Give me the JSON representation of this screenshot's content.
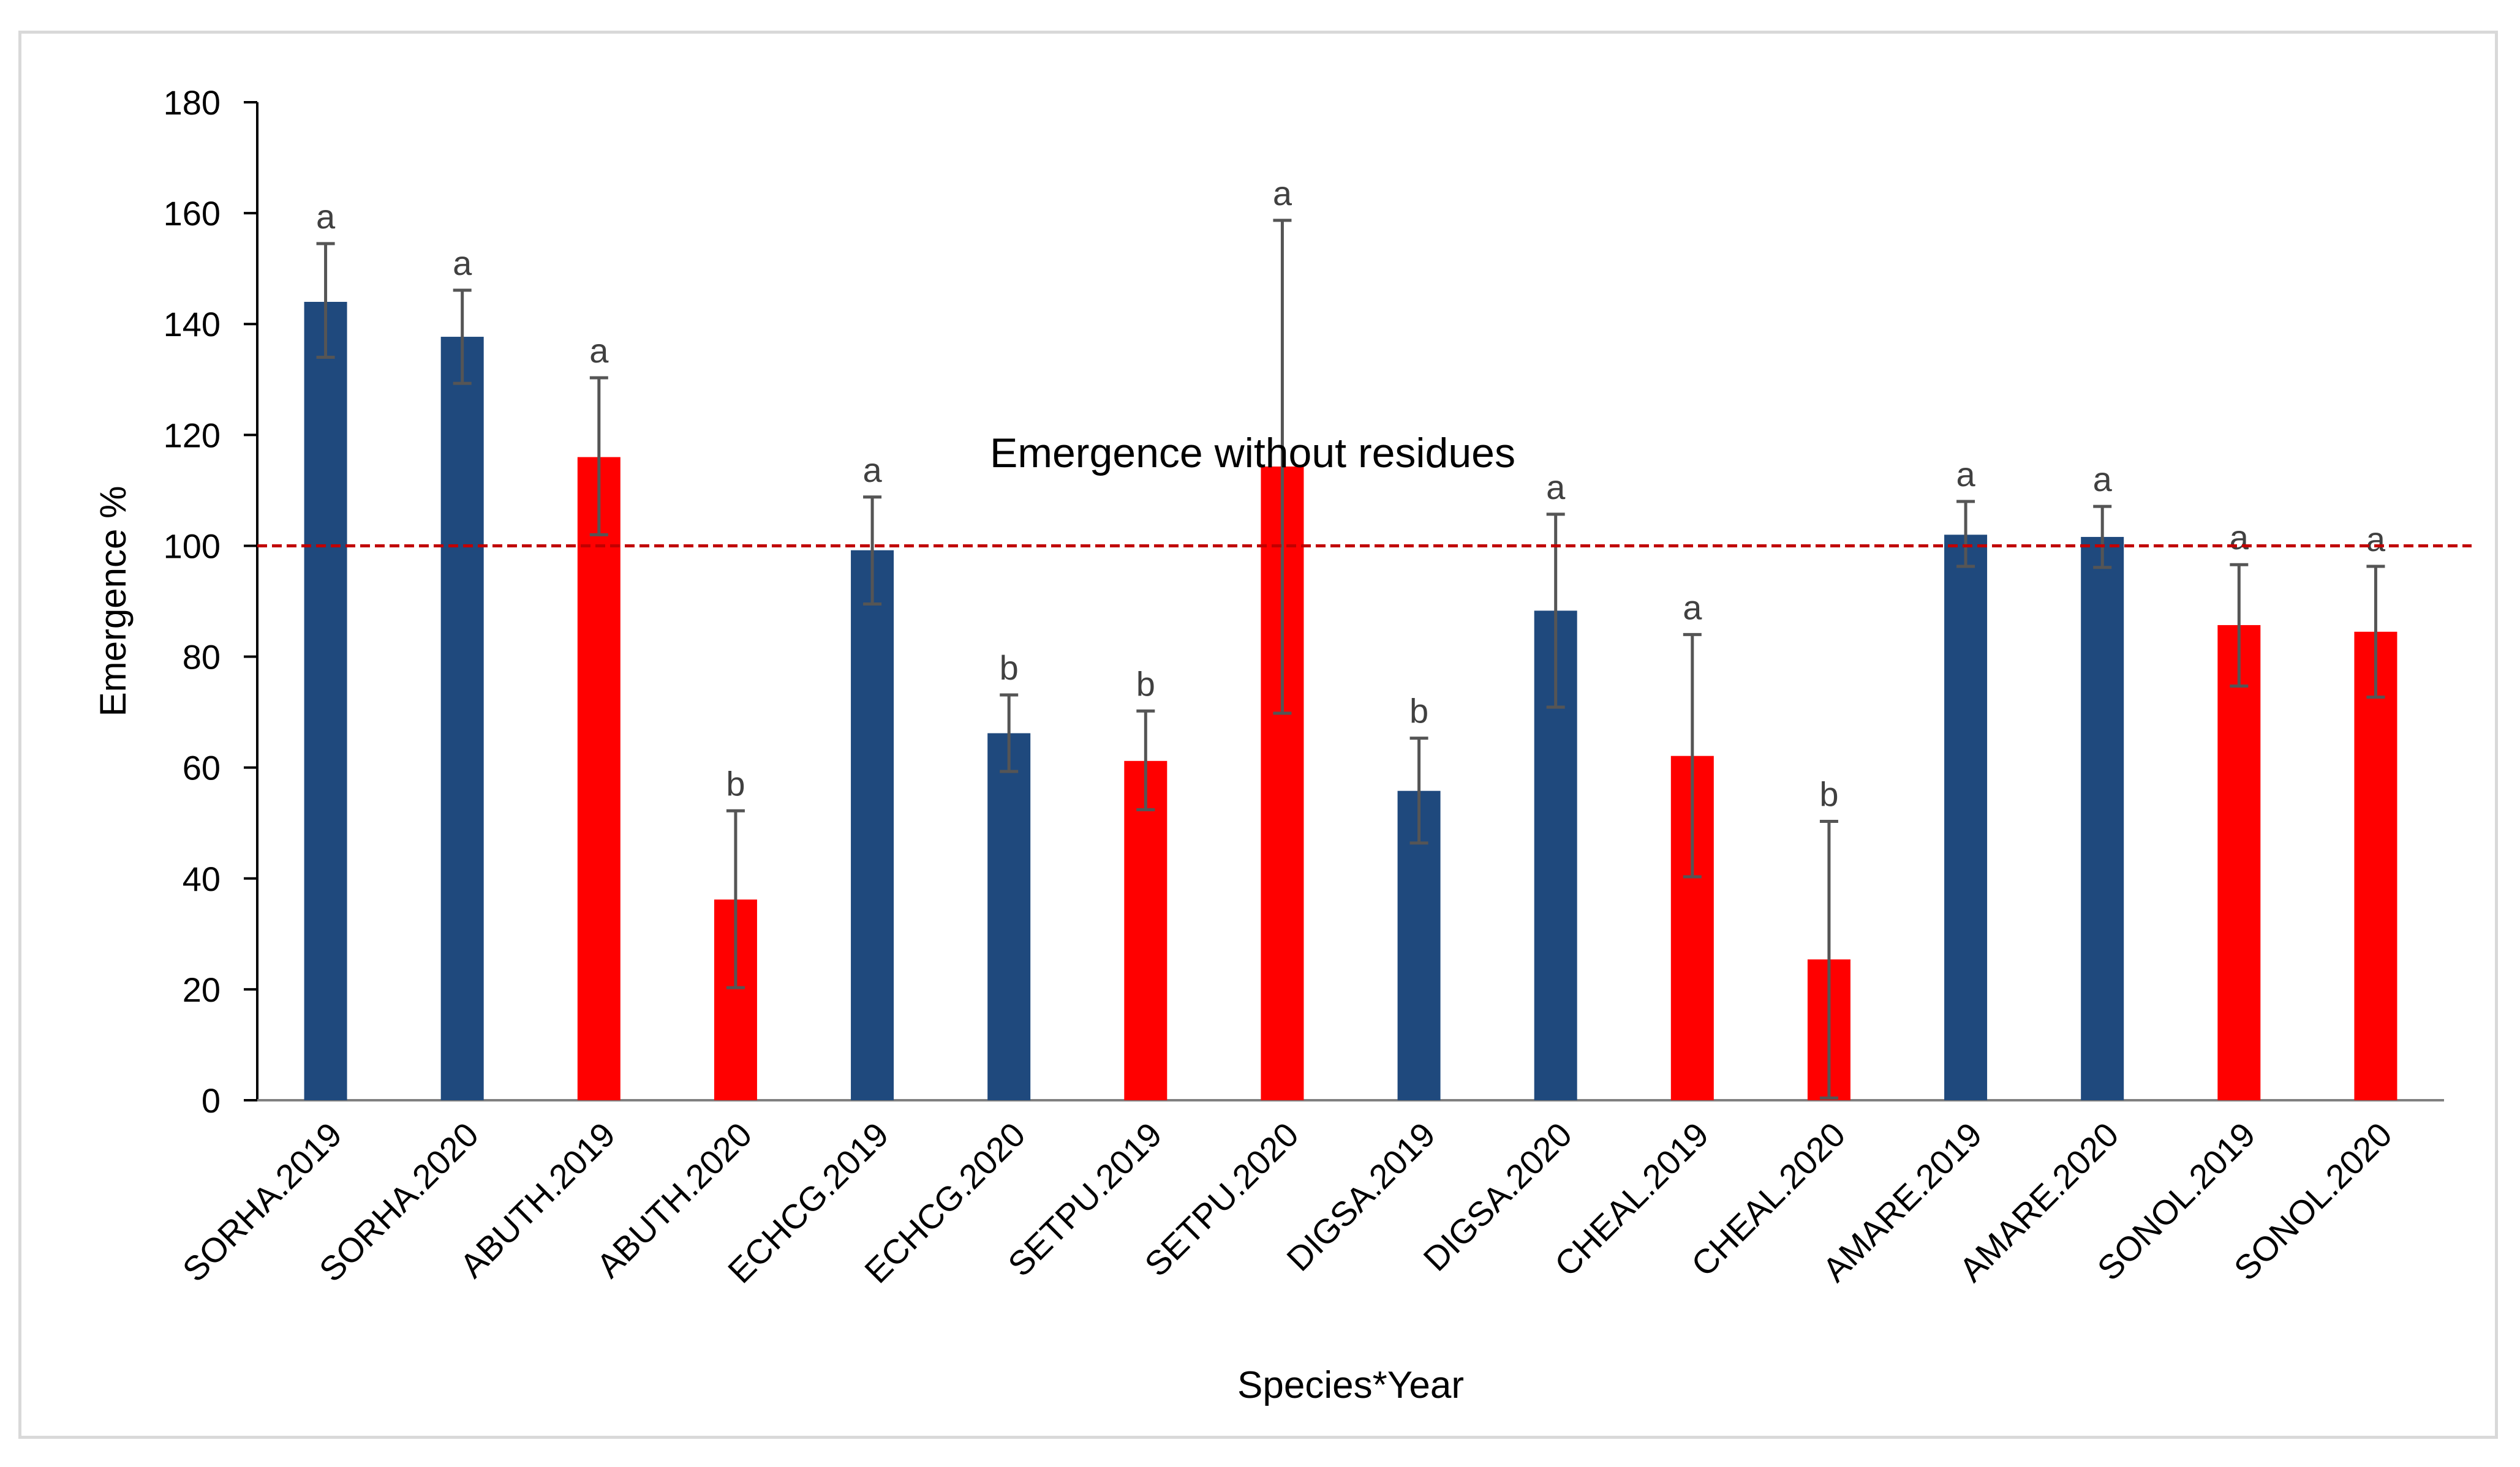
{
  "chart_data": {
    "type": "bar",
    "title": "",
    "xlabel": "Species*Year",
    "ylabel": "Emergence %",
    "ylim": [
      0,
      180
    ],
    "yticks": [
      0,
      20,
      40,
      60,
      80,
      100,
      120,
      140,
      160,
      180
    ],
    "grid": false,
    "categories": [
      "SORHA.2019",
      "SORHA.2020",
      "ABUTH.2019",
      "ABUTH.2020",
      "ECHCG.2019",
      "ECHCG.2020",
      "SETPU.2019",
      "SETPU.2020",
      "DIGSA.2019",
      "DIGSA.2020",
      "CHEAL.2019",
      "CHEAL.2020",
      "AMARE.2019",
      "AMARE.2020",
      "SONOL.2019",
      "SONOL.2020"
    ],
    "values": [
      144,
      137.7,
      116,
      36.2,
      99.2,
      66.2,
      61.2,
      114.3,
      55.8,
      88.3,
      62.1,
      25.4,
      102,
      101.6,
      85.7,
      84.5
    ],
    "error_low": [
      134,
      129.3,
      102,
      20.3,
      89.5,
      59.3,
      52.4,
      69.8,
      46.4,
      70.9,
      40.3,
      0.4,
      96.3,
      96.1,
      74.7,
      72.7
    ],
    "error_high": [
      154.5,
      146.1,
      130.3,
      52.2,
      108.8,
      73.1,
      70.2,
      158.7,
      65.3,
      105.7,
      84,
      50.3,
      108,
      107.1,
      96.6,
      96.3
    ],
    "letters": [
      "a",
      "a",
      "a",
      "b",
      "a",
      "b",
      "b",
      "a",
      "b",
      "a",
      "a",
      "b",
      "a",
      "a",
      "a",
      "a"
    ],
    "bar_colors": [
      "#1f497d",
      "#1f497d",
      "#ff0000",
      "#ff0000",
      "#1f497d",
      "#1f497d",
      "#ff0000",
      "#ff0000",
      "#1f497d",
      "#1f497d",
      "#ff0000",
      "#ff0000",
      "#1f497d",
      "#1f497d",
      "#ff0000",
      "#ff0000"
    ],
    "reference_line": {
      "value": 100,
      "label": "Emergence without residues",
      "color": "#c00000"
    }
  }
}
